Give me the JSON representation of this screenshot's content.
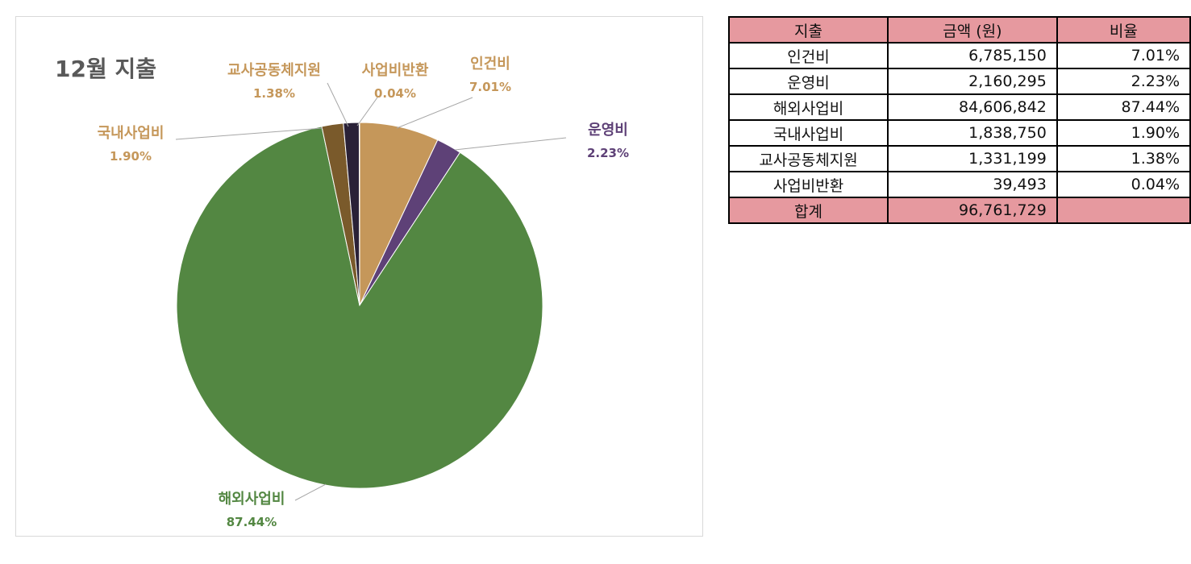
{
  "chart_data": {
    "type": "pie",
    "title": "12월 지출",
    "slices": [
      {
        "label": "인건비",
        "value": 7.01,
        "color": "#c5975a",
        "label_color": "#c5975a"
      },
      {
        "label": "운영비",
        "value": 2.23,
        "color": "#5e4177",
        "label_color": "#5e4177"
      },
      {
        "label": "해외사업비",
        "value": 87.44,
        "color": "#538742",
        "label_color": "#538742"
      },
      {
        "label": "국내사업비",
        "value": 1.9,
        "color": "#7a5a2b",
        "label_color": "#c5975a"
      },
      {
        "label": "교사공동체지원",
        "value": 1.38,
        "color": "#2a2137",
        "label_color": "#c5975a"
      },
      {
        "label": "사업비반환",
        "value": 0.04,
        "color": "#2f5e23",
        "label_color": "#c5975a"
      }
    ],
    "data_labels": [
      "7.01%",
      "2.23%",
      "87.44%",
      "1.90%",
      "1.38%",
      "0.04%"
    ]
  },
  "table": {
    "headers": [
      "지출",
      "금액 (원)",
      "비율"
    ],
    "rows": [
      [
        "인건비",
        "6,785,150",
        "7.01%"
      ],
      [
        "운영비",
        "2,160,295",
        "2.23%"
      ],
      [
        "해외사업비",
        "84,606,842",
        "87.44%"
      ],
      [
        "국내사업비",
        "1,838,750",
        "1.90%"
      ],
      [
        "교사공동체지원",
        "1,331,199",
        "1.38%"
      ],
      [
        "사업비반환",
        "39,493",
        "0.04%"
      ]
    ],
    "total": [
      "합계",
      "96,761,729",
      ""
    ]
  }
}
